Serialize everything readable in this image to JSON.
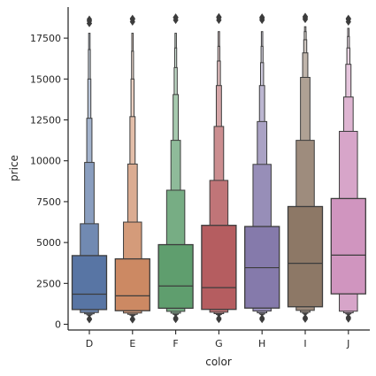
{
  "chart_data": {
    "type": "boxen",
    "xlabel": "color",
    "ylabel": "price",
    "ylim": [
      -350,
      19400
    ],
    "yticks": [
      0,
      2500,
      5000,
      7500,
      10000,
      12500,
      15000,
      17500
    ],
    "ytick_labels": [
      "0",
      "2500",
      "5000",
      "7500",
      "10000",
      "12500",
      "15000",
      "17500"
    ],
    "legend": "none",
    "grid": false,
    "categories": [
      "D",
      "E",
      "F",
      "G",
      "H",
      "I",
      "J"
    ],
    "colors": [
      "#5875a4",
      "#cc8963",
      "#5f9e6e",
      "#b55d60",
      "#857aab",
      "#8d7866",
      "#d095bf"
    ],
    "series": [
      {
        "category": "D",
        "median": 1840,
        "boxes": [
          [
            900,
            4200
          ],
          [
            720,
            6150
          ],
          [
            640,
            9900
          ],
          [
            580,
            12600
          ],
          [
            550,
            15000
          ],
          [
            530,
            16800
          ],
          [
            520,
            17800
          ]
        ],
        "outliers_low": [
          340,
          290
        ],
        "outliers_high": [
          18400,
          18550,
          18650
        ]
      },
      {
        "category": "E",
        "median": 1740,
        "boxes": [
          [
            830,
            4000
          ],
          [
            690,
            6250
          ],
          [
            610,
            9800
          ],
          [
            560,
            12700
          ],
          [
            530,
            15000
          ],
          [
            510,
            16700
          ],
          [
            500,
            17800
          ]
        ],
        "outliers_low": [
          330,
          280
        ],
        "outliers_high": [
          18500,
          18650,
          18700
        ]
      },
      {
        "category": "F",
        "median": 2340,
        "boxes": [
          [
            980,
            4870
          ],
          [
            790,
            8200
          ],
          [
            680,
            11250
          ],
          [
            610,
            14050
          ],
          [
            580,
            15700
          ],
          [
            560,
            16900
          ],
          [
            550,
            17800
          ]
        ],
        "outliers_low": [
          380,
          300
        ],
        "outliers_high": [
          18600,
          18750,
          18780
        ]
      },
      {
        "category": "G",
        "median": 2240,
        "boxes": [
          [
            910,
            6050
          ],
          [
            740,
            8800
          ],
          [
            650,
            12100
          ],
          [
            600,
            14600
          ],
          [
            570,
            16100
          ],
          [
            550,
            17000
          ],
          [
            540,
            17900
          ]
        ],
        "outliers_low": [
          370,
          300
        ],
        "outliers_high": [
          18600,
          18750,
          18800
        ]
      },
      {
        "category": "H",
        "median": 3460,
        "boxes": [
          [
            990,
            5980
          ],
          [
            810,
            9780
          ],
          [
            700,
            12400
          ],
          [
            630,
            14600
          ],
          [
            600,
            16000
          ],
          [
            580,
            17000
          ],
          [
            570,
            17900
          ]
        ],
        "outliers_low": [
          380,
          300
        ],
        "outliers_high": [
          18600,
          18700,
          18780
        ]
      },
      {
        "category": "I",
        "median": 3730,
        "boxes": [
          [
            1070,
            7200
          ],
          [
            850,
            11250
          ],
          [
            740,
            15100
          ],
          [
            670,
            16600
          ],
          [
            630,
            17400
          ],
          [
            600,
            17900
          ],
          [
            590,
            18200
          ]
        ],
        "outliers_low": [
          400,
          320
        ],
        "outliers_high": [
          18650,
          18750,
          18820
        ]
      },
      {
        "category": "J",
        "median": 4230,
        "boxes": [
          [
            1860,
            7690
          ],
          [
            800,
            11800
          ],
          [
            700,
            13900
          ],
          [
            640,
            15900
          ],
          [
            610,
            16900
          ],
          [
            590,
            17600
          ],
          [
            580,
            18100
          ]
        ],
        "outliers_low": [
          420,
          330
        ],
        "outliers_high": [
          18500,
          18650,
          18700
        ]
      }
    ]
  }
}
